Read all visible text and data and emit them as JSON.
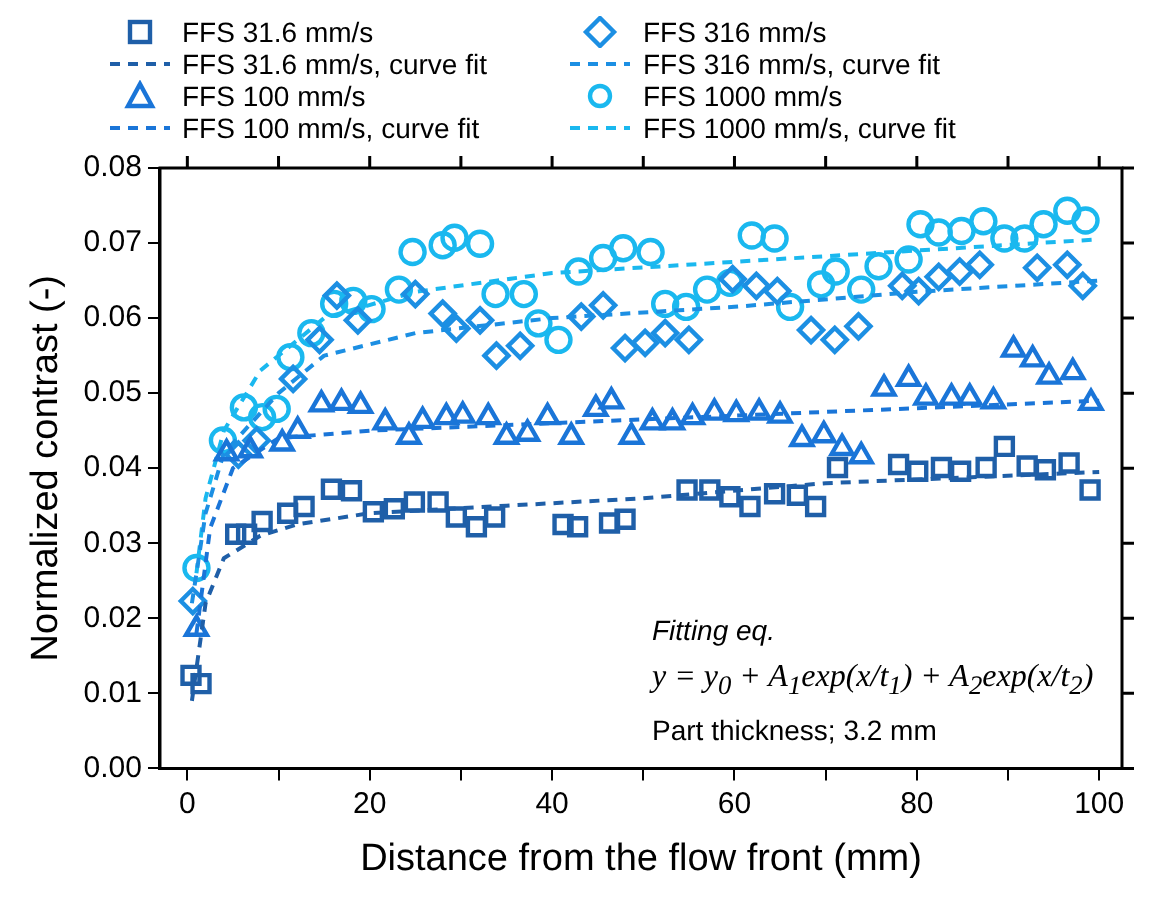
{
  "chart_data": {
    "type": "scatter",
    "xlabel": "Distance from the flow front (mm)",
    "ylabel": "Normalized contrast (-)",
    "xlim": [
      -3,
      102.5
    ],
    "xticks": [
      0,
      {
        "value": 10,
        "label": null
      },
      20,
      {
        "value": 30,
        "label": null
      },
      40,
      {
        "value": 50,
        "label": null
      },
      60,
      {
        "value": 70,
        "label": null
      },
      80,
      {
        "value": 90,
        "label": null
      },
      100
    ],
    "ylim": [
      0,
      0.08
    ],
    "yticks": [
      {
        "value": 0,
        "label": "0.00"
      },
      0.01,
      0.02,
      0.03,
      0.04,
      0.05,
      0.06,
      0.07,
      0.08
    ],
    "grid": false,
    "legend": "top",
    "annotations": [
      "Fitting eq.",
      "y = y$_{0}$ + A$_{1}$exp(x/t$_{1}$) + A$_{2}$exp(x/t$_{2}$)",
      "Part thickness; 3.2 mm"
    ],
    "series": [
      {
        "name": "FFS 31.6 mm/s",
        "type": "scatter",
        "marker": "square",
        "color": "#1f5fa8",
        "x": [
          0.4,
          1.5,
          5.3,
          6.5,
          8.2,
          11,
          12.8,
          15.8,
          18,
          20.4,
          22.7,
          24.9,
          27.5,
          29.5,
          31.7,
          33.7,
          41.2,
          42.8,
          46.3,
          48,
          54.8,
          57.3,
          59.5,
          61.7,
          64.4,
          66.9,
          68.9,
          71.3,
          78,
          80.1,
          82.7,
          84.8,
          87.6,
          89.6,
          92.1,
          94.1,
          96.7,
          99
        ],
        "values": [
          0.0124,
          0.0113,
          0.0312,
          0.0312,
          0.0329,
          0.034,
          0.0349,
          0.0372,
          0.037,
          0.0342,
          0.0346,
          0.0355,
          0.0355,
          0.0335,
          0.0322,
          0.0335,
          0.0325,
          0.0322,
          0.0327,
          0.0332,
          0.0371,
          0.0371,
          0.0362,
          0.0349,
          0.0366,
          0.0364,
          0.0349,
          0.0401,
          0.0405,
          0.0396,
          0.0401,
          0.0396,
          0.0401,
          0.0429,
          0.0403,
          0.0398,
          0.0407,
          0.0371
        ]
      },
      {
        "name": "FFS 31.6 mm/s, curve fit",
        "type": "line",
        "marker": "none",
        "line_style": "dashed",
        "color": "#1f5fa8",
        "x": [
          0.5,
          2,
          4,
          8,
          12,
          20,
          35,
          50,
          70,
          100
        ],
        "values": [
          0.009,
          0.022,
          0.028,
          0.031,
          0.0325,
          0.034,
          0.035,
          0.036,
          0.038,
          0.0395
        ]
      },
      {
        "name": "FFS 100 mm/s",
        "type": "scatter",
        "marker": "triangle",
        "color": "#1a75d8",
        "x": [
          1,
          4.3,
          6.9,
          10.4,
          12.1,
          14.7,
          16.9,
          19,
          21.7,
          24.3,
          25.8,
          28.4,
          30.2,
          33,
          35,
          37.3,
          39.5,
          42.1,
          44.8,
          46.5,
          48.7,
          51,
          53.2,
          55.4,
          57.8,
          60.2,
          62.7,
          65,
          67.4,
          69.8,
          71.8,
          73.9,
          76.4,
          79.1,
          81,
          83.8,
          85.8,
          88.4,
          90.6,
          92.7,
          94.5,
          97.1,
          99.1
        ],
        "values": [
          0.0186,
          0.042,
          0.0424,
          0.0433,
          0.045,
          0.0485,
          0.0487,
          0.0483,
          0.0461,
          0.0442,
          0.0463,
          0.0468,
          0.047,
          0.0468,
          0.0442,
          0.0446,
          0.0468,
          0.0442,
          0.0479,
          0.0489,
          0.0442,
          0.0461,
          0.0461,
          0.0468,
          0.0474,
          0.0472,
          0.0474,
          0.047,
          0.0439,
          0.0444,
          0.0427,
          0.0416,
          0.0506,
          0.0519,
          0.0494,
          0.0494,
          0.0494,
          0.0489,
          0.0558,
          0.0545,
          0.0522,
          0.0528,
          0.0487
        ]
      },
      {
        "name": "FFS 100 mm/s, curve fit",
        "type": "line",
        "marker": "none",
        "line_style": "dashed",
        "color": "#1a75d8",
        "x": [
          1,
          2.5,
          5,
          10,
          20,
          40,
          60,
          80,
          100
        ],
        "values": [
          0.018,
          0.032,
          0.04,
          0.044,
          0.045,
          0.046,
          0.047,
          0.048,
          0.049
        ]
      },
      {
        "name": "FFS 316 mm/s",
        "type": "scatter",
        "marker": "diamond",
        "color": "#1c8fe3",
        "x": [
          0.6,
          5.6,
          7.6,
          11.6,
          14.5,
          16.4,
          18.7,
          25,
          28,
          29.5,
          32.1,
          33.9,
          36.5,
          43.2,
          45.6,
          48,
          50.2,
          52.4,
          55,
          59.8,
          62.4,
          64.7,
          68.4,
          71,
          73.6,
          78.4,
          80.2,
          82.4,
          84.7,
          86.9,
          93.2,
          96.5,
          98.2
        ],
        "values": [
          0.0223,
          0.0418,
          0.0437,
          0.0519,
          0.0571,
          0.063,
          0.0597,
          0.0632,
          0.0606,
          0.0586,
          0.0597,
          0.055,
          0.0563,
          0.0602,
          0.0617,
          0.056,
          0.0567,
          0.058,
          0.0571,
          0.0652,
          0.0643,
          0.0636,
          0.0584,
          0.0571,
          0.0589,
          0.0643,
          0.0636,
          0.0655,
          0.0662,
          0.0671,
          0.0667,
          0.0671,
          0.0643
        ]
      },
      {
        "name": "FFS 316 mm/s, curve fit",
        "type": "line",
        "marker": "none",
        "line_style": "dashed",
        "color": "#1c8fe3",
        "x": [
          0.5,
          2,
          4,
          10,
          15,
          25,
          40,
          60,
          80,
          100
        ],
        "values": [
          0.022,
          0.034,
          0.042,
          0.05,
          0.055,
          0.058,
          0.06,
          0.0615,
          0.0635,
          0.065
        ]
      },
      {
        "name": "FFS 1000 mm/s",
        "type": "scatter",
        "marker": "circle",
        "color": "#1ab8ef",
        "x": [
          1,
          3.9,
          6.2,
          8.2,
          9.8,
          11.3,
          13.6,
          16.1,
          18.2,
          20.2,
          23.2,
          24.7,
          28,
          29.3,
          32.1,
          33.8,
          36.9,
          38.5,
          40.7,
          42.9,
          45.6,
          47.8,
          50.8,
          52.4,
          54.7,
          57,
          59.5,
          61.9,
          64.4,
          66.1,
          69.5,
          71.1,
          73.9,
          75.8,
          79.1,
          80.4,
          82.4,
          84.9,
          87.3,
          89.6,
          91.8,
          93.9,
          96.5,
          98.5
        ],
        "values": [
          0.0267,
          0.0437,
          0.0481,
          0.0468,
          0.0479,
          0.0548,
          0.058,
          0.0619,
          0.0623,
          0.0612,
          0.0638,
          0.0688,
          0.0697,
          0.0707,
          0.0699,
          0.0632,
          0.0632,
          0.0593,
          0.0571,
          0.0662,
          0.068,
          0.0693,
          0.0688,
          0.0619,
          0.0615,
          0.0638,
          0.0647,
          0.071,
          0.0706,
          0.0615,
          0.0645,
          0.0662,
          0.0638,
          0.0669,
          0.0678,
          0.0725,
          0.0714,
          0.0716,
          0.0729,
          0.0706,
          0.0706,
          0.0725,
          0.0743,
          0.073
        ]
      },
      {
        "name": "FFS 1000 mm/s, curve fit",
        "type": "line",
        "marker": "none",
        "line_style": "dashed",
        "color": "#1ab8ef",
        "x": [
          1,
          2,
          4,
          8,
          15,
          25,
          40,
          60,
          80,
          100
        ],
        "values": [
          0.026,
          0.036,
          0.045,
          0.053,
          0.06,
          0.0635,
          0.066,
          0.0675,
          0.069,
          0.0705
        ]
      }
    ]
  }
}
